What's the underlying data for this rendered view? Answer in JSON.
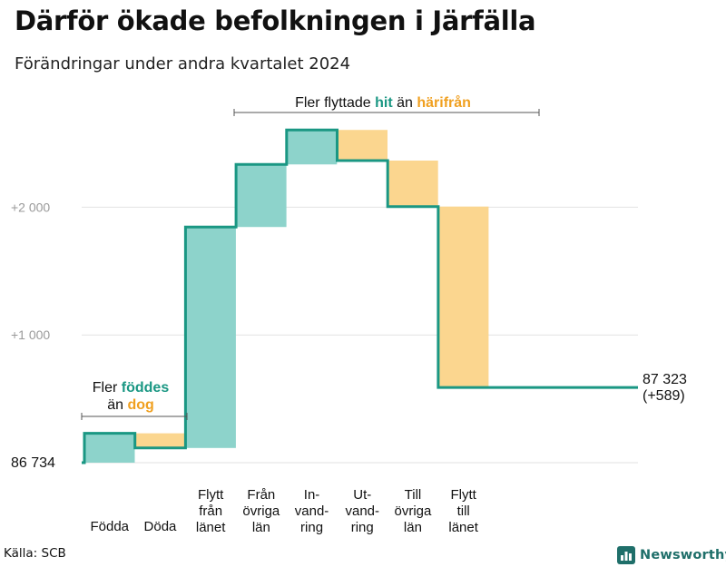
{
  "title": "Därför ökade befolkningen i Järfälla",
  "subtitle": "Förändringar under andra kvartalet 2024",
  "source": "Källa: SCB",
  "brand": {
    "name": "Newsworthy",
    "icon": "bar-chart-logo-icon"
  },
  "colors": {
    "increase": "#8dd3cb",
    "decrease": "#fbd68f",
    "step_line": "#1a9783",
    "highlight_hit": "#1a9783",
    "highlight_harifran": "#f0a020",
    "grid": "#e2e2e2",
    "brand": "#1f6f6a"
  },
  "annotations": {
    "born": {
      "line1_prefix": "Fler ",
      "line1_highlight": "föddes",
      "line2_prefix": "än ",
      "line2_highlight": "dog"
    },
    "moved": {
      "prefix": "Fler flyttade ",
      "highlight1": "hit",
      "middle": " än ",
      "highlight2": "härifrån"
    }
  },
  "chart_data": {
    "type": "waterfall",
    "baseline": 86734,
    "baseline_label": "86 734",
    "final_value": 87323,
    "final_label_lines": [
      "87 323",
      "(+589)"
    ],
    "yticks": [
      {
        "offset": 1000,
        "label": "+1 000"
      },
      {
        "offset": 2000,
        "label": "+2 000"
      }
    ],
    "ylim_offset": [
      0,
      2650
    ],
    "grid": true,
    "steps": [
      {
        "label_lines": [
          "Födda"
        ],
        "change": 230
      },
      {
        "label_lines": [
          "Döda"
        ],
        "change": -115
      },
      {
        "label_lines": [
          "Flytt",
          "från",
          "länet"
        ],
        "change": 1730
      },
      {
        "label_lines": [
          "Från",
          "övriga",
          "län"
        ],
        "change": 490
      },
      {
        "label_lines": [
          "In-",
          "vand-",
          "ring"
        ],
        "change": 270
      },
      {
        "label_lines": [
          "Ut-",
          "vand-",
          "ring"
        ],
        "change": -240
      },
      {
        "label_lines": [
          "Till",
          "övriga",
          "län"
        ],
        "change": -360
      },
      {
        "label_lines": [
          "Flytt",
          "till",
          "länet"
        ],
        "change": -1416
      }
    ]
  }
}
